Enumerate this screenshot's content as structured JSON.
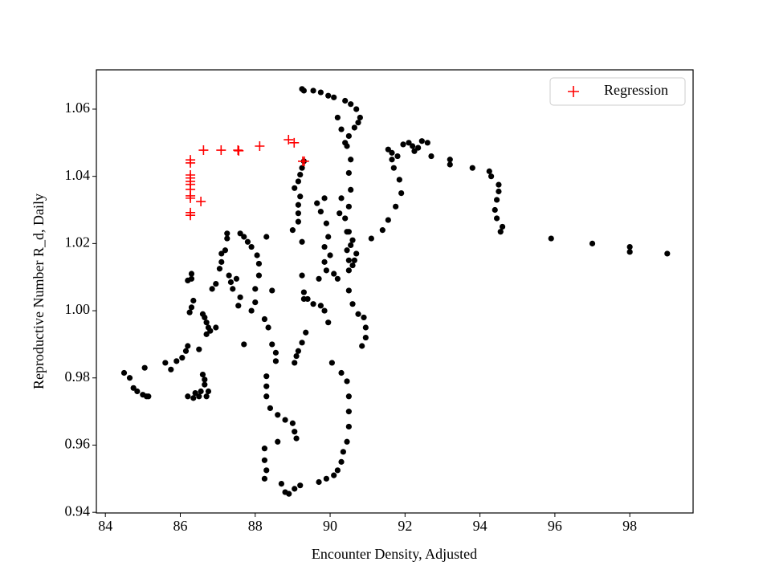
{
  "chart_data": {
    "type": "scatter",
    "xlabel": "Encounter Density, Adjusted",
    "ylabel": "Reproductive Number R_d, Daily",
    "xlim": [
      83.76,
      99.69
    ],
    "ylim": [
      0.9398,
      1.0717
    ],
    "xticks": [
      84,
      86,
      88,
      90,
      92,
      94,
      96,
      98
    ],
    "yticks": [
      {
        "value": 0.94,
        "label": "0.94"
      },
      {
        "value": 0.96,
        "label": "0.96"
      },
      {
        "value": 0.98,
        "label": "0.98"
      },
      {
        "value": 1.0,
        "label": "1.00"
      },
      {
        "value": 1.02,
        "label": "1.02"
      },
      {
        "value": 1.04,
        "label": "1.04"
      },
      {
        "value": 1.06,
        "label": "1.06"
      }
    ],
    "legend": "upper right",
    "series": [
      {
        "color": "#000000",
        "marker": "circle",
        "x": [
          84.5,
          84.65,
          84.75,
          84.85,
          85.0,
          85.1,
          85.15,
          85.05,
          85.6,
          85.75,
          85.9,
          86.05,
          86.15,
          86.2,
          86.2,
          86.35,
          86.4,
          86.5,
          86.55,
          86.65,
          86.7,
          86.75,
          86.6,
          86.65,
          86.5,
          86.25,
          86.3,
          86.35,
          86.2,
          86.3,
          86.3,
          86.6,
          86.65,
          86.7,
          86.75,
          86.7,
          86.8,
          86.95,
          86.85,
          86.95,
          87.05,
          87.1,
          87.1,
          87.2,
          87.25,
          87.25,
          87.3,
          87.35,
          87.4,
          87.5,
          87.6,
          87.7,
          87.8,
          87.9,
          88.05,
          88.1,
          88.1,
          88.0,
          88.0,
          87.9,
          87.6,
          87.55,
          87.7,
          88.3,
          88.45,
          88.25,
          88.35,
          88.45,
          88.55,
          88.55,
          88.3,
          88.3,
          88.3,
          88.4,
          88.6,
          88.8,
          89.0,
          89.05,
          89.1,
          88.25,
          88.25,
          88.3,
          88.25,
          88.6,
          88.7,
          88.8,
          88.9,
          89.05,
          89.2,
          89.7,
          89.9,
          90.1,
          90.2,
          90.3,
          90.35,
          90.45,
          90.5,
          90.5,
          90.5,
          90.45,
          90.3,
          90.05,
          89.95,
          89.85,
          89.75,
          89.55,
          89.3,
          89.3,
          89.4,
          89.35,
          89.25,
          89.15,
          89.1,
          89.05,
          89.25,
          89.7,
          89.85,
          89.9,
          90.1,
          90.2,
          90.5,
          90.6,
          90.75,
          90.9,
          90.95,
          90.95,
          90.85,
          90.5,
          90.5,
          90.6,
          90.65,
          90.7,
          90.45,
          90.55,
          90.6,
          90.5,
          90.4,
          90.5,
          90.55,
          90.5,
          90.55,
          90.45,
          90.5,
          90.65,
          90.75,
          90.8,
          90.7,
          90.55,
          90.4,
          90.2,
          90.3,
          90.4,
          90.1,
          89.95,
          89.75,
          89.55,
          89.3,
          89.25,
          89.05,
          89.15,
          89.2,
          89.25,
          89.3,
          89.2,
          89.15,
          89.15,
          89.15,
          89.0,
          89.25,
          89.65,
          89.85,
          89.75,
          89.9,
          89.95,
          89.85,
          90.0,
          90.25,
          90.3,
          90.45,
          91.1,
          91.4,
          91.55,
          91.75,
          91.9,
          91.85,
          91.7,
          91.65,
          91.55,
          91.65,
          91.8,
          91.95,
          92.1,
          92.2,
          92.25,
          92.35,
          92.45,
          92.6,
          92.7,
          93.2,
          93.2,
          93.8,
          94.25,
          94.3,
          94.5,
          94.5,
          94.45,
          94.4,
          94.45,
          94.6,
          94.55,
          95.9,
          97.0,
          98.0,
          98.0,
          99.0
        ],
        "values": [
          0.9815,
          0.98,
          0.977,
          0.976,
          0.975,
          0.9745,
          0.9745,
          0.983,
          0.9845,
          0.9825,
          0.985,
          0.986,
          0.988,
          0.9895,
          0.9745,
          0.974,
          0.9755,
          0.9745,
          0.976,
          0.978,
          0.9745,
          0.976,
          0.981,
          0.9795,
          0.9885,
          0.9995,
          1.001,
          1.003,
          1.009,
          1.0095,
          1.011,
          0.999,
          0.998,
          0.9965,
          0.995,
          0.993,
          0.994,
          0.995,
          1.0065,
          1.008,
          1.0125,
          1.0145,
          1.017,
          1.018,
          1.0215,
          1.023,
          1.0105,
          1.0085,
          1.0065,
          1.0095,
          1.023,
          1.022,
          1.0205,
          1.019,
          1.0165,
          1.014,
          1.0105,
          1.0065,
          1.0025,
          1.0,
          1.004,
          1.0015,
          0.99,
          1.022,
          1.006,
          0.9975,
          0.995,
          0.99,
          0.9875,
          0.985,
          0.9805,
          0.9775,
          0.9745,
          0.971,
          0.969,
          0.9675,
          0.9665,
          0.964,
          0.962,
          0.959,
          0.9555,
          0.9525,
          0.95,
          0.961,
          0.9485,
          0.946,
          0.9455,
          0.947,
          0.948,
          0.949,
          0.95,
          0.951,
          0.9525,
          0.955,
          0.958,
          0.961,
          0.9655,
          0.97,
          0.9745,
          0.979,
          0.9815,
          0.9845,
          0.9965,
          1.0,
          1.0015,
          1.002,
          1.0035,
          1.0055,
          1.0035,
          0.9935,
          0.9905,
          0.988,
          0.9865,
          0.9845,
          1.0105,
          1.0095,
          1.0145,
          1.012,
          1.011,
          1.0095,
          1.006,
          1.002,
          0.999,
          0.998,
          0.995,
          0.992,
          0.9895,
          1.012,
          1.015,
          1.0135,
          1.015,
          1.017,
          1.018,
          1.0195,
          1.021,
          1.0235,
          1.0275,
          1.031,
          1.036,
          1.041,
          1.045,
          1.049,
          1.052,
          1.0545,
          1.056,
          1.0575,
          1.06,
          1.0615,
          1.0625,
          1.0575,
          1.054,
          1.05,
          1.0635,
          1.064,
          1.065,
          1.0655,
          1.0655,
          1.066,
          1.0365,
          1.0385,
          1.0405,
          1.0425,
          1.0445,
          1.034,
          1.0315,
          1.029,
          1.0265,
          1.024,
          1.0205,
          1.032,
          1.0335,
          1.0295,
          1.026,
          1.022,
          1.019,
          1.0165,
          1.029,
          1.0335,
          1.0235,
          1.0215,
          1.024,
          1.027,
          1.031,
          1.035,
          1.039,
          1.0425,
          1.045,
          1.048,
          1.047,
          1.046,
          1.0495,
          1.05,
          1.049,
          1.0475,
          1.0485,
          1.0505,
          1.05,
          1.046,
          1.045,
          1.0435,
          1.0425,
          1.0415,
          1.04,
          1.0375,
          1.0355,
          1.033,
          1.03,
          1.0275,
          1.025,
          1.0235,
          1.0215,
          1.02,
          1.019,
          1.0175,
          1.017
        ]
      },
      {
        "name": "Regression",
        "color": "#ff0000",
        "marker": "plus",
        "x": [
          86.27,
          86.27,
          86.27,
          86.27,
          86.27,
          86.27,
          86.27,
          86.27,
          86.27,
          86.27,
          86.27,
          86.55,
          86.62,
          87.09,
          87.54,
          87.56,
          88.12,
          88.89,
          89.04,
          89.27,
          89.31
        ],
        "values": [
          1.0449,
          1.044,
          1.0404,
          1.0395,
          1.0385,
          1.0376,
          1.0361,
          1.0342,
          1.0335,
          1.0292,
          1.0284,
          1.0325,
          1.0478,
          1.0478,
          1.0478,
          1.0476,
          1.049,
          1.0509,
          1.05,
          1.0445,
          1.0445
        ]
      }
    ]
  }
}
